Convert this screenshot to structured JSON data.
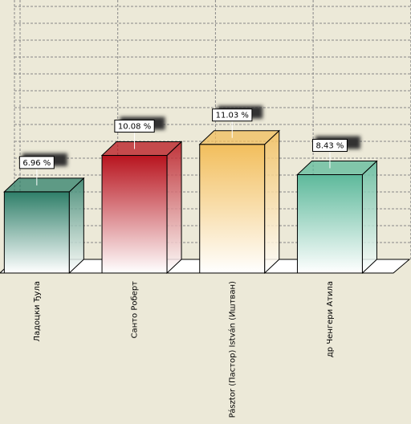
{
  "chart_data": {
    "type": "bar3d",
    "categories": [
      "Ладоцки Ђула",
      "Санто Роберт",
      "Pásztor (Пастор) István (Иштван)",
      "др Ченгери Атила"
    ],
    "values": [
      6.96,
      10.08,
      11.03,
      8.43
    ],
    "value_labels": [
      "6.96 %",
      "10.08 %",
      "11.03 %",
      "8.43 %"
    ],
    "colors": [
      "#2f7f69",
      "#b8141e",
      "#f2be5c",
      "#5db99b"
    ],
    "ylim": [
      0,
      23.4
    ],
    "grid": true
  }
}
